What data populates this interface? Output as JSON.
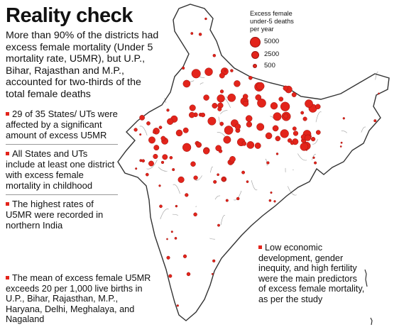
{
  "title": "Reality check",
  "intro": "More than 90% of the districts had excess female mortality (Under 5 mortality rate, U5MR), but U.P., Bihar, Rajasthan and M.P., accounted for two-thirds of the total female deaths",
  "legend": {
    "title_lines": [
      "Excess female",
      "under-5 deaths",
      "per year"
    ],
    "entries": [
      {
        "label": "5000",
        "value": 5000
      },
      {
        "label": "2500",
        "value": 2500
      },
      {
        "label": "500",
        "value": 500
      }
    ]
  },
  "bullets": [
    "29 of 35 States/ UTs were affected by a significant amount of excess U5MR",
    "All States and UTs include at least one district with excess female mortality in childhood",
    "The highest rates of U5MR were recorded in northern India"
  ],
  "bottom_note": "The mean of excess female U5MR exceeds 20 per 1,000 live births in U.P., Bihar, Rajasthan, M.P., Haryana, Delhi, Meghalaya, and Nagaland",
  "right_note": "Low economic development, gender inequity, and high fertility were the main predictors of excess female mortality, as per the study",
  "colors": {
    "dot_fill": "#e3241b",
    "dot_stroke": "#9c1410",
    "map_fill": "#ffffff",
    "map_stroke": "#333333",
    "accent": "#e3241b"
  }
}
